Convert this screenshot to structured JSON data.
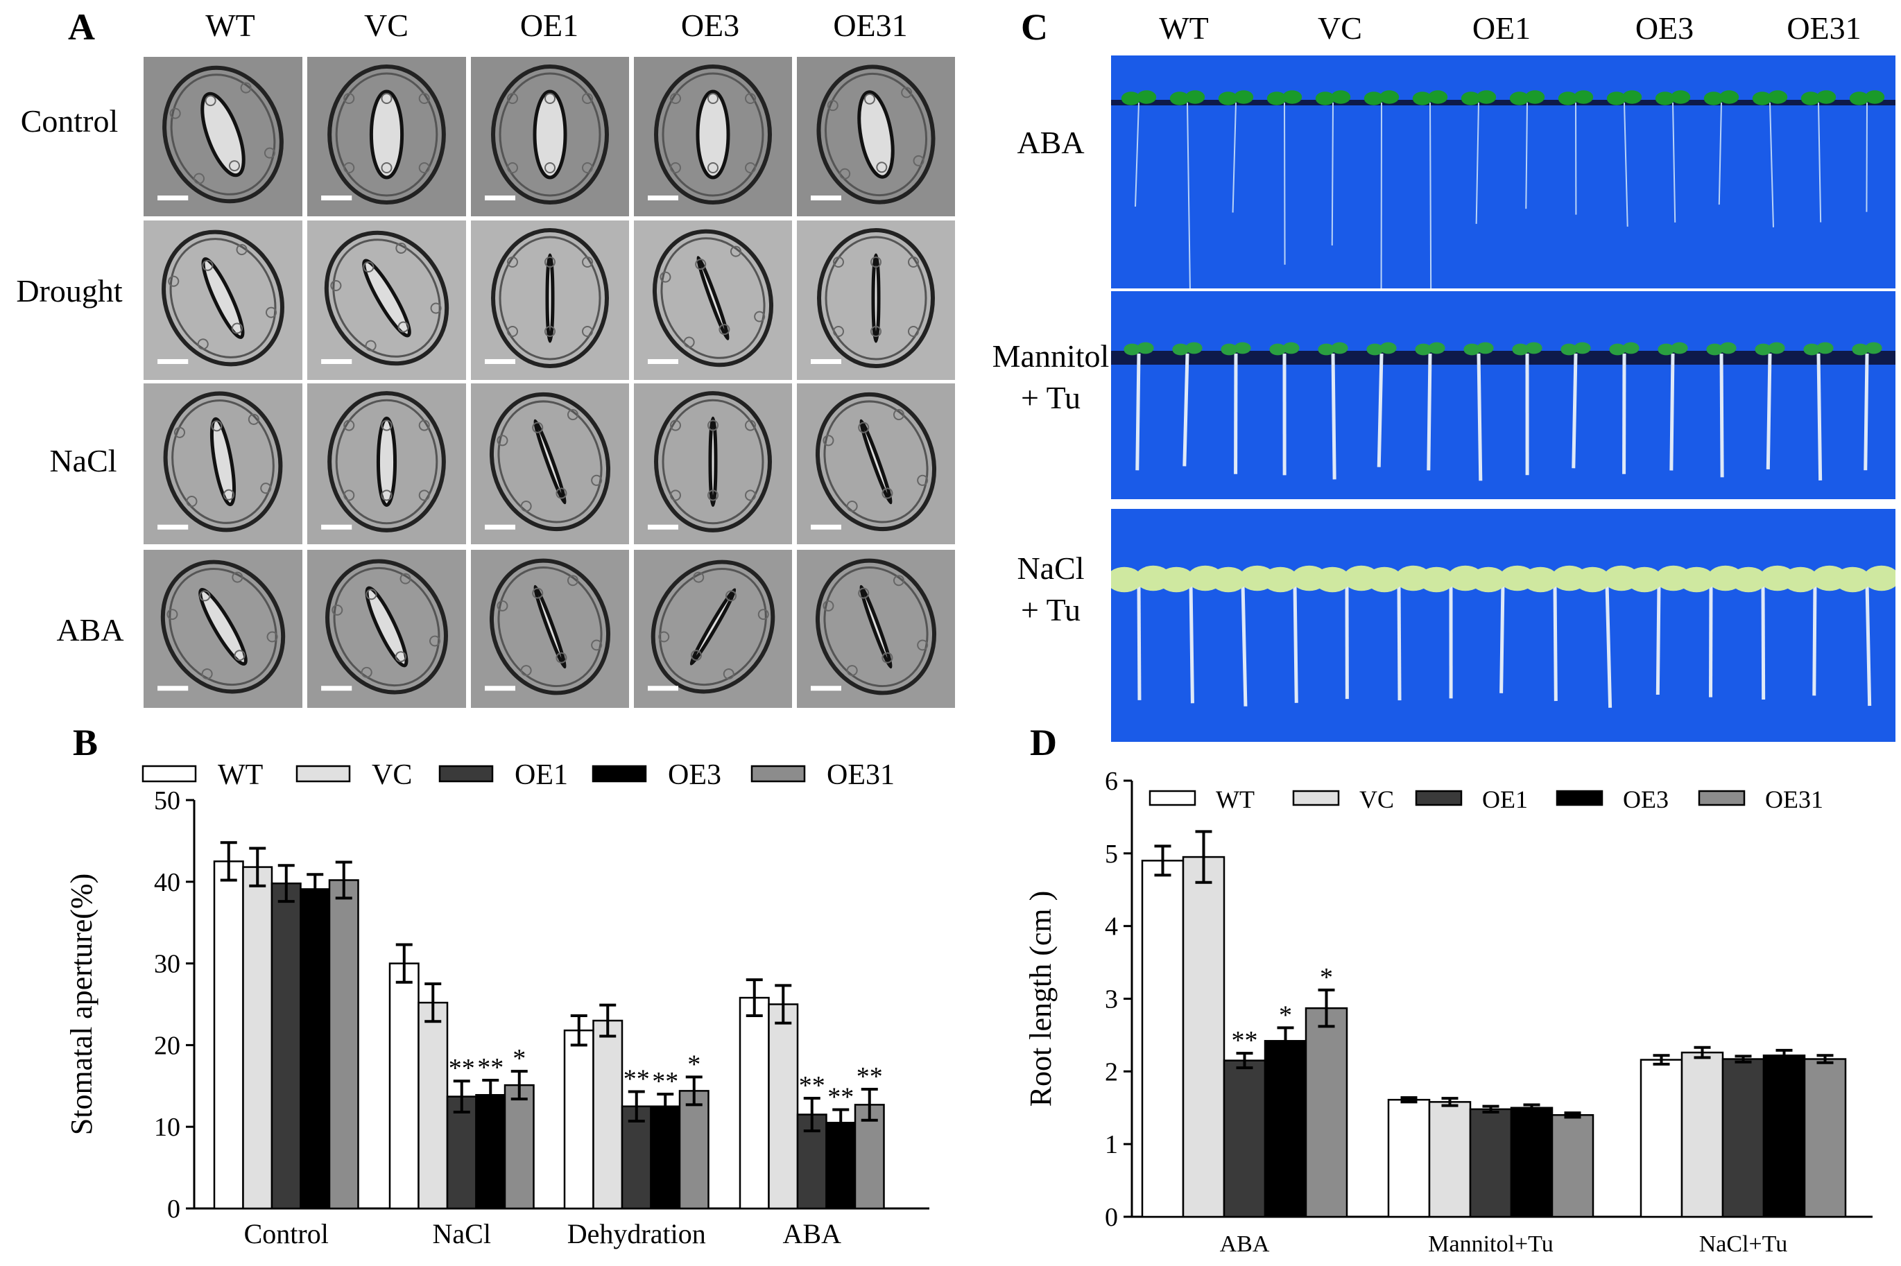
{
  "panels": {
    "A": {
      "letter": "A",
      "columns": [
        "WT",
        "VC",
        "OE1",
        "OE3",
        "OE31"
      ],
      "rows": [
        "Control",
        "Drought",
        "NaCl",
        "ABA"
      ]
    },
    "B": {
      "letter": "B"
    },
    "C": {
      "letter": "C",
      "columns": [
        "WT",
        "VC",
        "OE1",
        "OE3",
        "OE31"
      ],
      "rows": [
        {
          "line1": "ABA",
          "line2": ""
        },
        {
          "line1": "Mannitol",
          "line2": "+ Tu"
        },
        {
          "line1": "NaCl",
          "line2": "+ Tu"
        }
      ]
    },
    "D": {
      "letter": "D"
    }
  },
  "chart_data": [
    {
      "type": "bar",
      "panel": "B",
      "ylabel": "Stomatal aperture(%)",
      "xlabel": "",
      "ylim": [
        0,
        50
      ],
      "yticks": [
        0,
        10,
        20,
        30,
        40,
        50
      ],
      "legend": [
        "WT",
        "VC",
        "OE1",
        "OE3",
        "OE31"
      ],
      "categories": [
        "Control",
        "NaCl",
        "Dehydration",
        "ABA"
      ],
      "colors": [
        "#ffffff",
        "#e0e0e0",
        "#3a3a3a",
        "#000000",
        "#8c8c8c"
      ],
      "series": [
        {
          "name": "WT",
          "values": [
            42.5,
            30.0,
            21.8,
            25.8
          ],
          "errors": [
            2.3,
            2.3,
            1.8,
            2.2
          ],
          "marks": [
            "",
            "",
            "",
            ""
          ]
        },
        {
          "name": "VC",
          "values": [
            41.8,
            25.2,
            23.0,
            25.0
          ],
          "errors": [
            2.3,
            2.3,
            1.9,
            2.3
          ],
          "marks": [
            "",
            "",
            "",
            ""
          ]
        },
        {
          "name": "OE1",
          "values": [
            39.8,
            13.7,
            12.5,
            11.5
          ],
          "errors": [
            2.2,
            1.9,
            1.8,
            2.0
          ],
          "marks": [
            "",
            "**",
            "**",
            "**"
          ]
        },
        {
          "name": "OE3",
          "values": [
            39.1,
            13.9,
            12.5,
            10.5
          ],
          "errors": [
            1.8,
            1.8,
            1.5,
            1.6
          ],
          "marks": [
            "",
            "**",
            "**",
            "**"
          ]
        },
        {
          "name": "OE31",
          "values": [
            40.2,
            15.1,
            14.4,
            12.7
          ],
          "errors": [
            2.2,
            1.7,
            1.7,
            1.9
          ],
          "marks": [
            "",
            "*",
            "*",
            "**"
          ]
        }
      ]
    },
    {
      "type": "bar",
      "panel": "D",
      "ylabel": "Root length (cm )",
      "xlabel": "",
      "ylim": [
        0,
        6
      ],
      "yticks": [
        0,
        1,
        2,
        3,
        4,
        5,
        6
      ],
      "legend": [
        "WT",
        "VC",
        "OE1",
        "OE3",
        "OE31"
      ],
      "categories": [
        "ABA",
        "Mannitol+Tu",
        "NaCl+Tu"
      ],
      "colors": [
        "#ffffff",
        "#e0e0e0",
        "#3a3a3a",
        "#000000",
        "#8c8c8c"
      ],
      "series": [
        {
          "name": "WT",
          "values": [
            4.9,
            1.61,
            2.16
          ],
          "errors": [
            0.2,
            0.03,
            0.06
          ],
          "marks": [
            "",
            "",
            ""
          ]
        },
        {
          "name": "VC",
          "values": [
            4.95,
            1.58,
            2.26
          ],
          "errors": [
            0.35,
            0.05,
            0.07
          ],
          "marks": [
            "",
            "",
            ""
          ]
        },
        {
          "name": "OE1",
          "values": [
            2.15,
            1.48,
            2.17
          ],
          "errors": [
            0.1,
            0.04,
            0.04
          ],
          "marks": [
            "**",
            "",
            ""
          ]
        },
        {
          "name": "OE3",
          "values": [
            2.42,
            1.5,
            2.22
          ],
          "errors": [
            0.18,
            0.04,
            0.07
          ],
          "marks": [
            "*",
            "",
            ""
          ]
        },
        {
          "name": "OE31",
          "values": [
            2.87,
            1.4,
            2.17
          ],
          "errors": [
            0.25,
            0.03,
            0.05
          ],
          "marks": [
            "*",
            "",
            ""
          ]
        }
      ]
    }
  ]
}
